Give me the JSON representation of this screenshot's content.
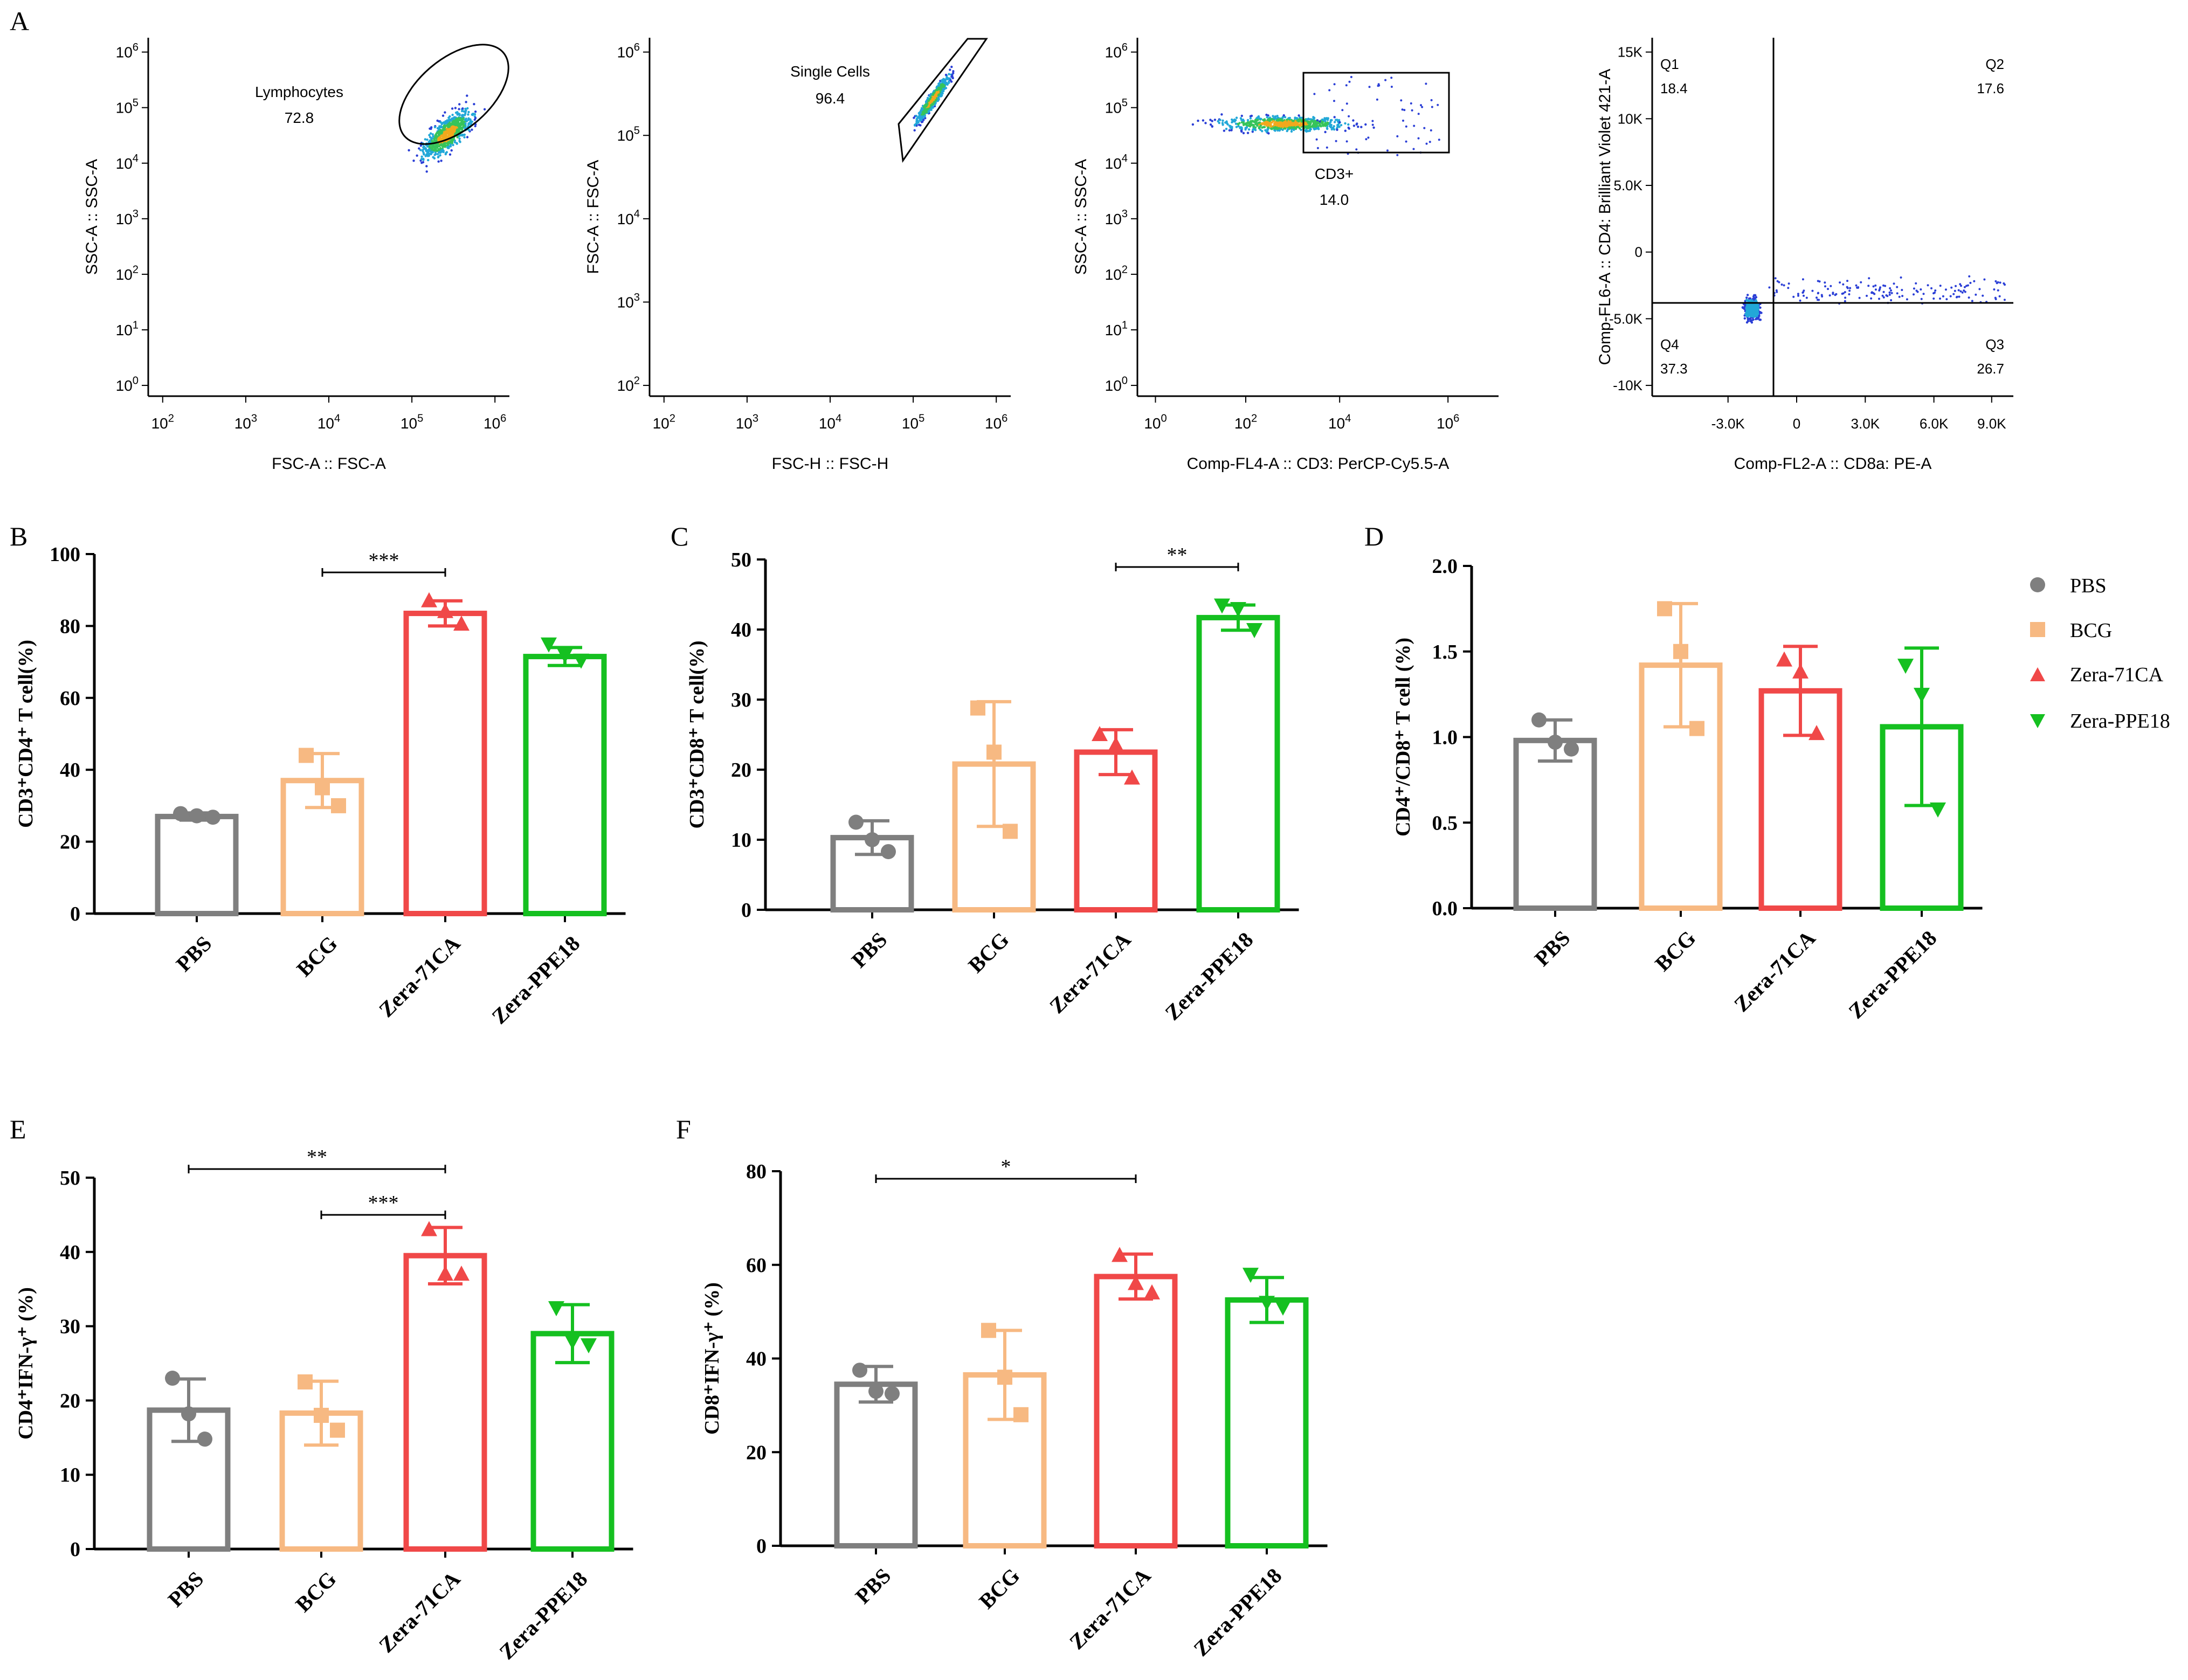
{
  "colors": {
    "PBS": "#7f7f7f",
    "BCG": "#f7b982",
    "Zera-71CA": "#f04848",
    "Zera-PPE18": "#15c020",
    "flowLine": "#000000",
    "dots": "#2b3fd6"
  },
  "panel_labels": {
    "A": "A",
    "B": "B",
    "C": "C",
    "D": "D",
    "E": "E",
    "F": "F"
  },
  "legend": {
    "items": [
      {
        "label": "PBS",
        "marker": "circle",
        "color": "#7f7f7f"
      },
      {
        "label": "BCG",
        "marker": "square",
        "color": "#f7b982"
      },
      {
        "label": "Zera-71CA",
        "marker": "triangle-up",
        "color": "#f04848"
      },
      {
        "label": "Zera-PPE18",
        "marker": "triangle-down",
        "color": "#15c020"
      }
    ]
  },
  "flow_panels": [
    {
      "id": "a1",
      "xlabel": "FSC-A :: FSC-A",
      "ylabel": "SSC-A :: SSC-A",
      "xticks": [
        {
          "b": "10",
          "e": "2"
        },
        {
          "b": "10",
          "e": "3"
        },
        {
          "b": "10",
          "e": "4"
        },
        {
          "b": "10",
          "e": "5"
        },
        {
          "b": "10",
          "e": "6"
        }
      ],
      "yticks": [
        {
          "b": "10",
          "e": "0"
        },
        {
          "b": "10",
          "e": "1"
        },
        {
          "b": "10",
          "e": "2"
        },
        {
          "b": "10",
          "e": "3"
        },
        {
          "b": "10",
          "e": "4"
        },
        {
          "b": "10",
          "e": "5"
        },
        {
          "b": "10",
          "e": "6"
        }
      ],
      "gate_name": "Lymphocytes",
      "gate_value": "72.8"
    },
    {
      "id": "a2",
      "xlabel": "FSC-H :: FSC-H",
      "ylabel": "FSC-A :: FSC-A",
      "xticks": [
        {
          "b": "10",
          "e": "2"
        },
        {
          "b": "10",
          "e": "3"
        },
        {
          "b": "10",
          "e": "4"
        },
        {
          "b": "10",
          "e": "5"
        },
        {
          "b": "10",
          "e": "6"
        }
      ],
      "yticks": [
        {
          "b": "10",
          "e": "2"
        },
        {
          "b": "10",
          "e": "3"
        },
        {
          "b": "10",
          "e": "4"
        },
        {
          "b": "10",
          "e": "5"
        },
        {
          "b": "10",
          "e": "6"
        }
      ],
      "gate_name": "Single Cells",
      "gate_value": "96.4"
    },
    {
      "id": "a3",
      "xlabel": "Comp-FL4-A :: CD3: PerCP-Cy5.5-A",
      "ylabel": "SSC-A :: SSC-A",
      "xticks": [
        {
          "b": "10",
          "e": "0"
        },
        {
          "b": "10",
          "e": "2"
        },
        {
          "b": "10",
          "e": "4"
        },
        {
          "b": "10",
          "e": "6"
        }
      ],
      "yticks": [
        {
          "b": "10",
          "e": "0"
        },
        {
          "b": "10",
          "e": "1"
        },
        {
          "b": "10",
          "e": "2"
        },
        {
          "b": "10",
          "e": "3"
        },
        {
          "b": "10",
          "e": "4"
        },
        {
          "b": "10",
          "e": "5"
        },
        {
          "b": "10",
          "e": "6"
        }
      ],
      "gate_name": "CD3+",
      "gate_value": "14.0"
    },
    {
      "id": "a4",
      "xlabel": "Comp-FL2-A :: CD8a: PE-A",
      "ylabel": "Comp-FL6-A :: CD4: Brilliant Violet 421-A",
      "xticks": [
        "-3.0K",
        "0",
        "3.0K",
        "6.0K",
        "9.0K"
      ],
      "yticks": [
        "15K",
        "10K",
        "5.0K",
        "0",
        "-5.0K",
        "-10K"
      ],
      "quadrants": [
        {
          "name": "Q1",
          "value": "18.4"
        },
        {
          "name": "Q2",
          "value": "17.6"
        },
        {
          "name": "Q4",
          "value": "37.3"
        },
        {
          "name": "Q3",
          "value": "26.7"
        }
      ]
    }
  ],
  "chart_data": [
    {
      "id": "B",
      "type": "bar",
      "categories": [
        "PBS",
        "BCG",
        "Zera-71CA",
        "Zera-PPE18"
      ],
      "ylabel": "CD3⁺CD4⁺ T cell(%)",
      "ylim": [
        0,
        100
      ],
      "yticks": [
        "0",
        "20",
        "40",
        "60",
        "80",
        "100"
      ],
      "means": [
        27,
        37,
        83.5,
        71.5
      ],
      "sd": [
        1,
        7.5,
        3.5,
        2.5
      ],
      "points": [
        [
          27.8,
          27.2,
          26.8
        ],
        [
          44,
          35,
          30
        ],
        [
          87,
          84,
          80.5
        ],
        [
          75,
          72,
          70.5
        ]
      ],
      "sig": [
        {
          "from": 1,
          "to": 2,
          "label": "***"
        }
      ]
    },
    {
      "id": "C",
      "type": "bar",
      "categories": [
        "PBS",
        "BCG",
        "Zera-71CA",
        "Zera-PPE18"
      ],
      "ylabel": "CD3⁺CD8⁺ T cell(%)",
      "ylim": [
        0,
        50
      ],
      "yticks": [
        "0",
        "10",
        "20",
        "30",
        "40",
        "50"
      ],
      "means": [
        10.3,
        20.8,
        22.5,
        41.7
      ],
      "sd": [
        2.4,
        8.9,
        3.2,
        1.8
      ],
      "points": [
        [
          12.5,
          10,
          8.3
        ],
        [
          28.8,
          22.5,
          11.2
        ],
        [
          25,
          23.5,
          18.8
        ],
        [
          43.5,
          43,
          40
        ]
      ],
      "sig": [
        {
          "from": 2,
          "to": 3,
          "label": "**"
        }
      ]
    },
    {
      "id": "D",
      "type": "bar",
      "categories": [
        "PBS",
        "BCG",
        "Zera-71CA",
        "Zera-PPE18"
      ],
      "ylabel": "CD4⁺/CD8⁺ T cell (%)",
      "ylim": [
        0,
        2
      ],
      "yticks": [
        "0.0",
        "0.5",
        "1.0",
        "1.5",
        "2.0"
      ],
      "means": [
        0.98,
        1.42,
        1.27,
        1.06
      ],
      "sd": [
        0.12,
        0.36,
        0.26,
        0.46
      ],
      "points": [
        [
          1.1,
          0.97,
          0.93
        ],
        [
          1.75,
          1.5,
          1.05
        ],
        [
          1.45,
          1.38,
          1.02
        ],
        [
          1.42,
          1.25,
          0.58
        ]
      ],
      "sig": []
    },
    {
      "id": "E",
      "type": "bar",
      "categories": [
        "PBS",
        "BCG",
        "Zera-71CA",
        "Zera-PPE18"
      ],
      "ylabel": "CD4⁺IFN-γ⁺ (%)",
      "ylim": [
        0,
        50
      ],
      "yticks": [
        "0",
        "10",
        "20",
        "30",
        "40",
        "50"
      ],
      "means": [
        18.7,
        18.3,
        39.5,
        29
      ],
      "sd": [
        4.2,
        4.3,
        3.8,
        3.9
      ],
      "points": [
        [
          23,
          18.2,
          14.8
        ],
        [
          22.5,
          18,
          16
        ],
        [
          43,
          37,
          37
        ],
        [
          32.5,
          28,
          27.5
        ]
      ],
      "sig": [
        {
          "from": 0,
          "to": 2,
          "label": "**"
        },
        {
          "from": 1,
          "to": 2,
          "label": "***"
        }
      ]
    },
    {
      "id": "F",
      "type": "bar",
      "categories": [
        "PBS",
        "BCG",
        "Zera-71CA",
        "Zera-PPE18"
      ],
      "ylabel": "CD8⁺IFN-γ⁺ (%)",
      "ylim": [
        0,
        80
      ],
      "yticks": [
        "0",
        "20",
        "40",
        "60",
        "80"
      ],
      "means": [
        34.5,
        36.5,
        57.5,
        52.5
      ],
      "sd": [
        3.8,
        9.5,
        4.8,
        4.8
      ],
      "points": [
        [
          37.5,
          33,
          32.5
        ],
        [
          46,
          36,
          28
        ],
        [
          62,
          56,
          54
        ],
        [
          58,
          52,
          51
        ]
      ],
      "sig": [
        {
          "from": 0,
          "to": 2,
          "label": "*"
        }
      ]
    }
  ]
}
